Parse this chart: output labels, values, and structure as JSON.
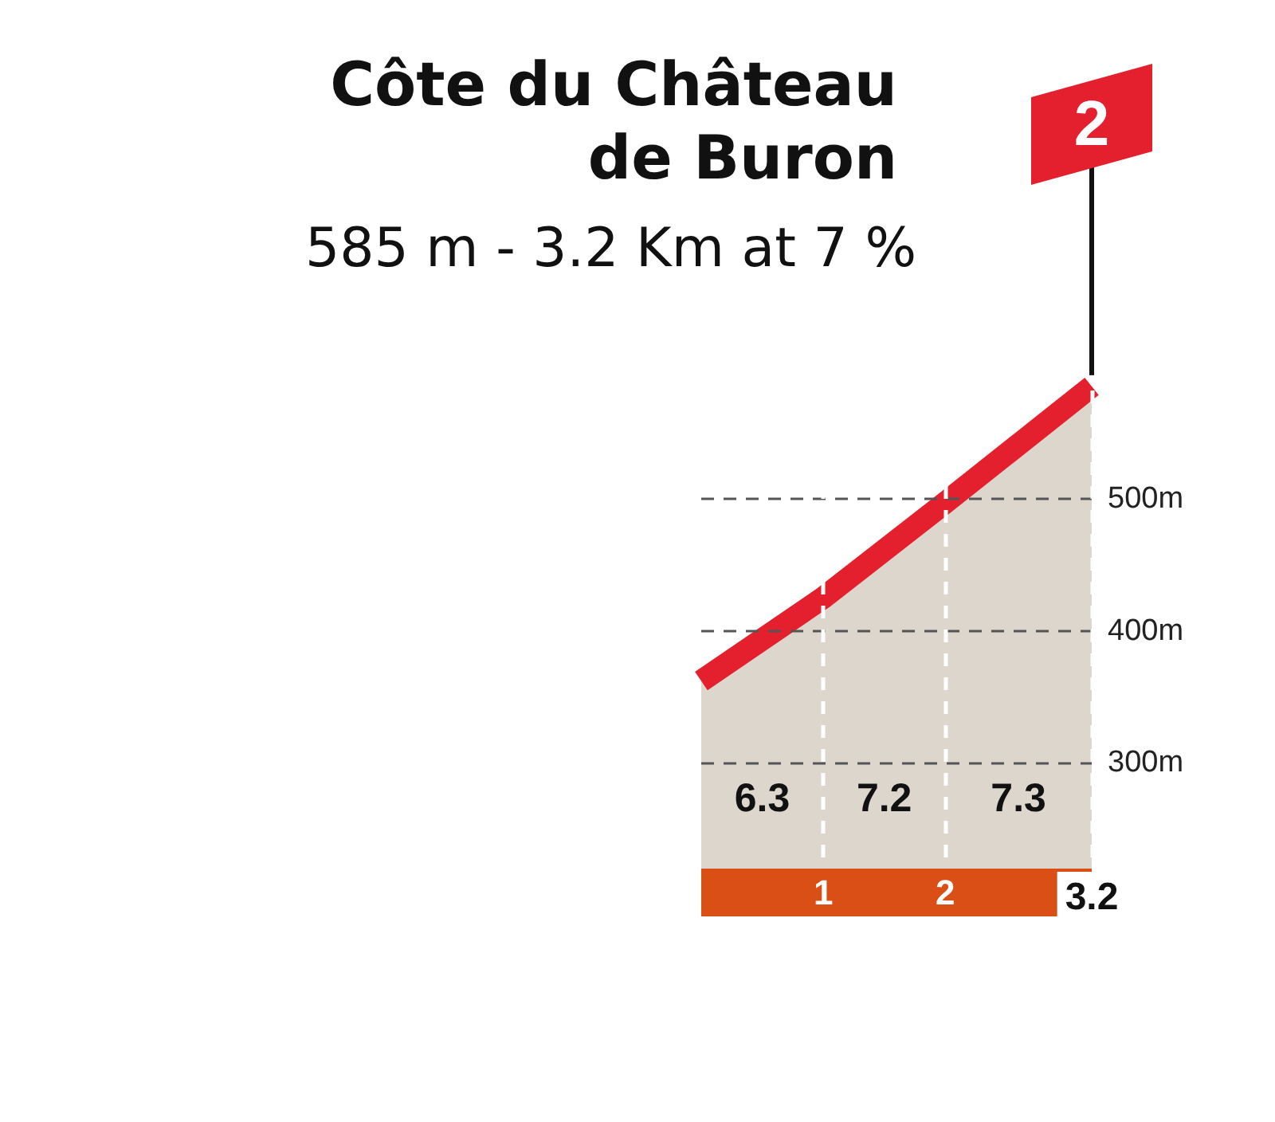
{
  "chart_data": {
    "type": "area",
    "title": "Côte du Château de Buron",
    "subtitle": "585 m - 3.2 Km at 7 %",
    "x": [
      0,
      1,
      2,
      3.2
    ],
    "values": [
      362,
      425,
      497,
      585
    ],
    "color": "#ddd6cc",
    "xlim": [
      0,
      3.2
    ],
    "xticks": [
      1,
      2,
      3.2
    ],
    "ylim": [
      220,
      600
    ],
    "yticks": [
      {
        "value": 300,
        "label": "300m"
      },
      {
        "value": 400,
        "label": "400m"
      },
      {
        "value": 500,
        "label": "500m"
      }
    ],
    "grid": true,
    "marker": "none",
    "annotations": [
      "6.3",
      "7.2",
      "7.3",
      "2"
    ]
  }
}
